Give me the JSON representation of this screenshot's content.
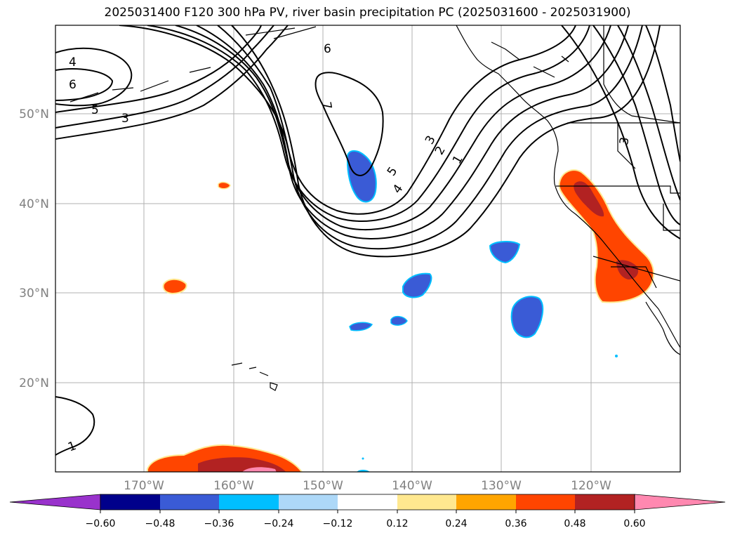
{
  "title": "2025031400 F120 300 hPa PV, river basin precipitation PC (2025031600 - 2025031900)",
  "map": {
    "lon_labels": [
      "170°W",
      "160°W",
      "150°W",
      "140°W",
      "130°W",
      "120°W"
    ],
    "lat_labels": [
      "50°N",
      "40°N",
      "30°N",
      "20°N"
    ],
    "axis_label_color": "#808080",
    "contour_labels": [
      "4",
      "6",
      "5",
      "3",
      "6",
      "7",
      "5",
      "4",
      "3",
      "2",
      "1",
      "3",
      "1"
    ]
  },
  "colorbar": {
    "ticks": [
      "−0.60",
      "−0.48",
      "−0.36",
      "−0.24",
      "−0.12",
      "0.12",
      "0.24",
      "0.36",
      "0.48",
      "0.60"
    ],
    "colors": [
      "#9932cc",
      "#00008b",
      "#3a5bd6",
      "#00bfff",
      "#add8f8",
      "#ffffff",
      "#ffe88f",
      "#ffa500",
      "#ff4500",
      "#b22222",
      "#ff88b0"
    ]
  }
}
